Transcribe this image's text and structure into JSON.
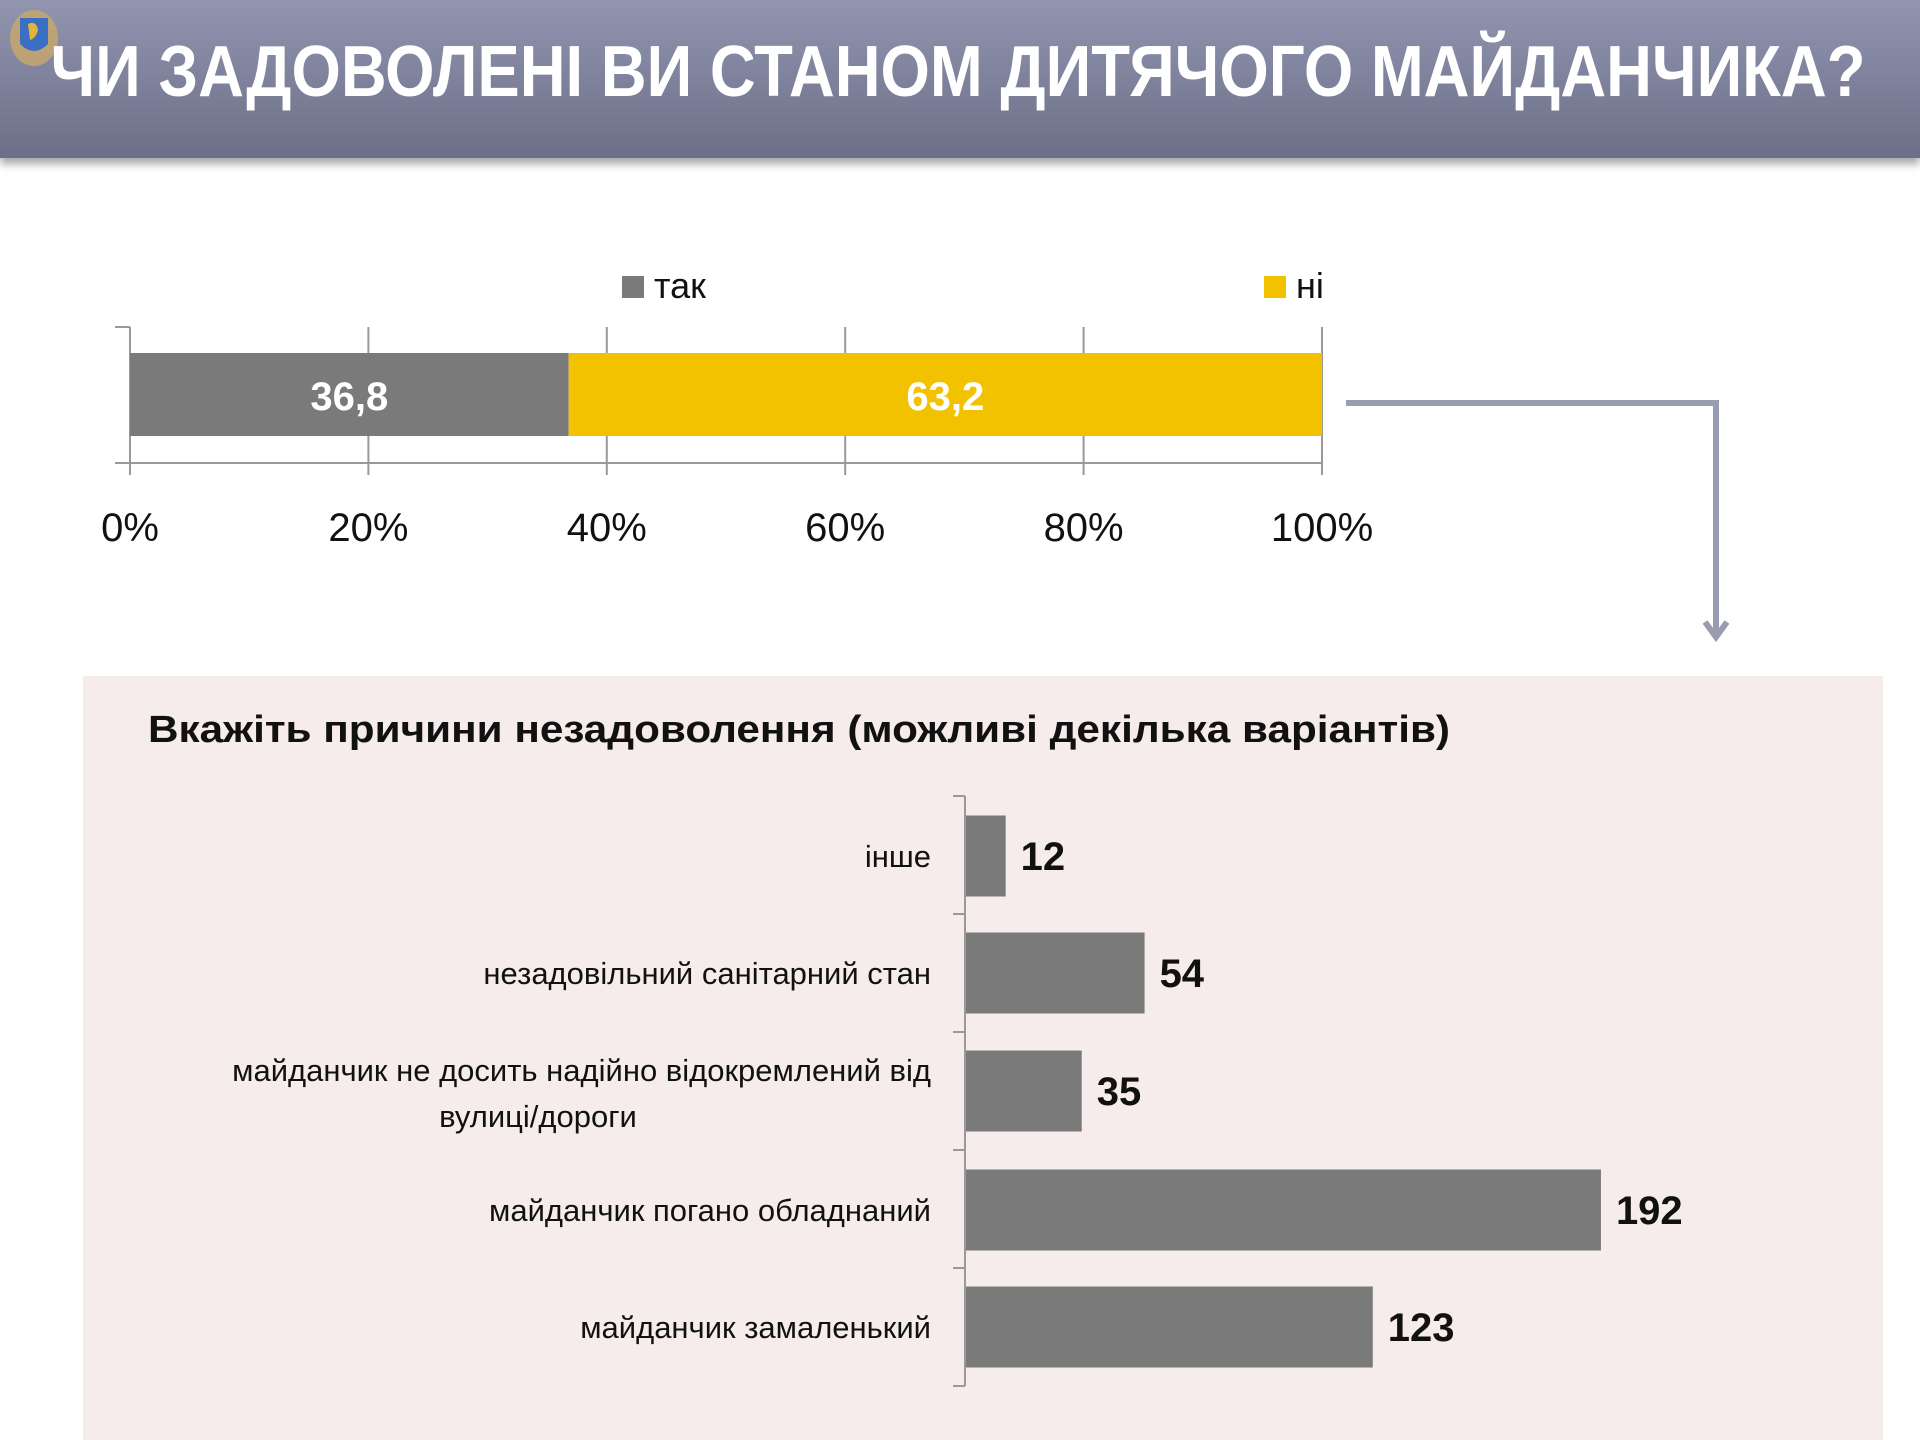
{
  "header": {
    "title": "ЧИ ЗАДОВОЛЕНІ ВИ СТАНОМ ДИТЯЧОГО МАЙДАНЧИКА?",
    "logo": "Lviv oblast coat of arms"
  },
  "colors": {
    "tak": "#7a7a7a",
    "ni": "#f2c200",
    "bars": "#7a7a7a",
    "panel": "#f6ecec",
    "arrow": "#9a9db2"
  },
  "chart_data": [
    {
      "type": "bar",
      "orientation": "horizontal-stacked-100",
      "title": "",
      "series": [
        {
          "name": "так",
          "values": [
            36.8
          ],
          "label": "36,8"
        },
        {
          "name": "ні",
          "values": [
            63.2
          ],
          "label": "63,2"
        }
      ],
      "xticks": [
        "0%",
        "20%",
        "40%",
        "60%",
        "80%",
        "100%"
      ],
      "xlim": [
        0,
        100
      ],
      "legend": "top"
    },
    {
      "type": "bar",
      "orientation": "horizontal",
      "title": "Вкажіть причини незадоволення (можливі декілька варіантів)",
      "categories": [
        "інше",
        "незадовільний санітарний стан",
        [
          "майданчик не досить надійно відокремлений від",
          "вулиці/дороги"
        ],
        "майданчик погано обладнаний",
        "майданчик замаленький"
      ],
      "values": [
        12,
        54,
        35,
        192,
        123
      ]
    }
  ]
}
